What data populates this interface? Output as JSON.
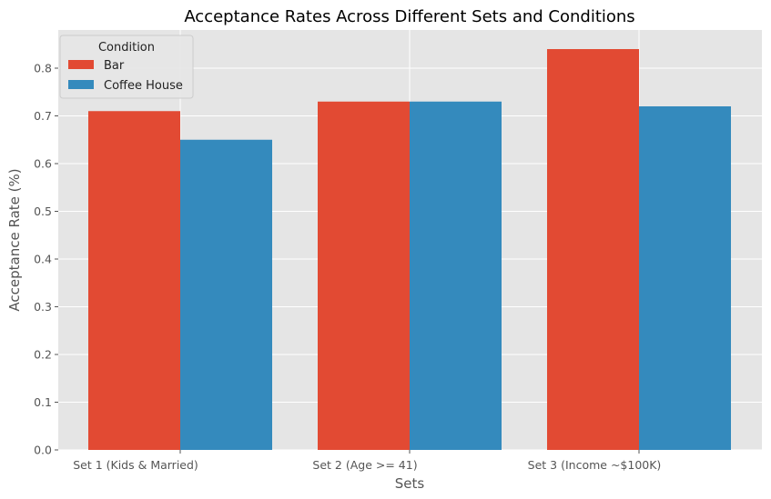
{
  "chart_data": {
    "type": "bar",
    "title": "Acceptance Rates Across Different Sets and Conditions",
    "xlabel": "Sets",
    "ylabel": "Acceptance Rate (%)",
    "categories": [
      "Set 1 (Kids & Married)",
      "Set 2 (Age >= 41)",
      "Set 3 (Income ~$100K)"
    ],
    "series": [
      {
        "name": "Bar",
        "color": "#e24a33",
        "values": [
          0.71,
          0.73,
          0.84
        ]
      },
      {
        "name": "Coffee House",
        "color": "#348abd",
        "values": [
          0.65,
          0.73,
          0.72
        ]
      }
    ],
    "ylim": [
      0,
      0.88
    ],
    "yticks": [
      "0.0",
      "0.1",
      "0.2",
      "0.3",
      "0.4",
      "0.5",
      "0.6",
      "0.7",
      "0.8"
    ],
    "legend_title": "Condition",
    "legend_placement": "top-left",
    "grid": true,
    "plot_background": "#e5e5e5"
  }
}
